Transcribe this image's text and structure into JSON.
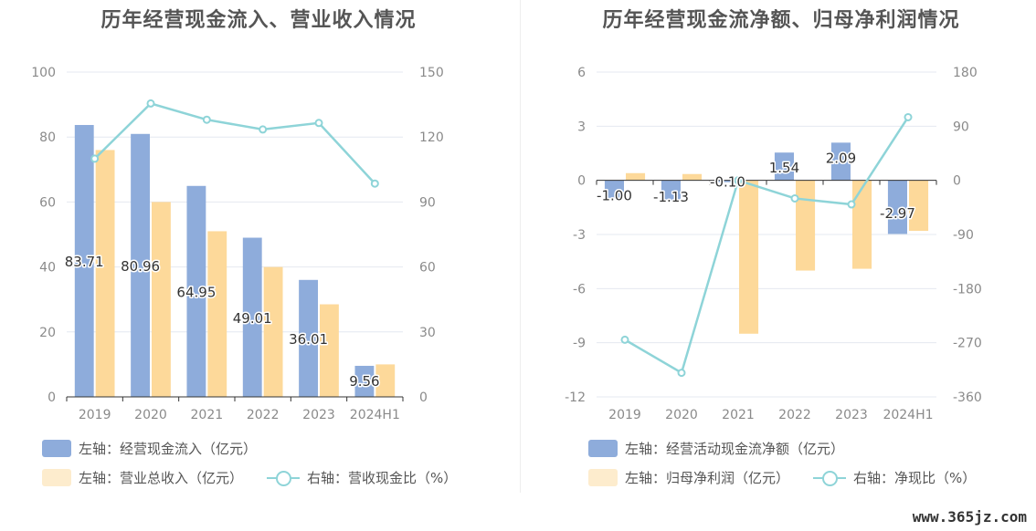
{
  "watermark": "www.365jz.com",
  "colors": {
    "bar_primary": "#8eacdb",
    "bar_secondary": "#fdd99a",
    "line": "#8ed4d8",
    "grid": "#e4e8f0",
    "axis": "#333333"
  },
  "chart_data": [
    {
      "type": "bar",
      "title": "历年经营现金流入、营业收入情况",
      "categories": [
        "2019",
        "2020",
        "2021",
        "2022",
        "2023",
        "2024H1"
      ],
      "left_axis": {
        "ylim": [
          0,
          100
        ],
        "ticks": [
          "0",
          "20",
          "40",
          "60",
          "80",
          "100"
        ]
      },
      "right_axis": {
        "ylim": [
          0,
          150
        ],
        "ticks": [
          "0",
          "30",
          "60",
          "90",
          "120",
          "150"
        ]
      },
      "series": [
        {
          "name": "左轴：经营现金流入（亿元）",
          "type": "bar",
          "axis": "left",
          "values": [
            83.71,
            80.96,
            64.95,
            49.01,
            36.01,
            9.56
          ],
          "labels": [
            "83.71",
            "80.96",
            "64.95",
            "49.01",
            "36.01",
            "9.56"
          ]
        },
        {
          "name": "左轴：营业总收入（亿元）",
          "type": "bar",
          "axis": "left",
          "values": [
            76,
            60,
            51,
            40,
            28.5,
            10
          ]
        },
        {
          "name": "右轴：营收现金比（%）",
          "type": "line",
          "axis": "right",
          "values": [
            110,
            135.5,
            128,
            123.5,
            126.5,
            98.5
          ]
        }
      ],
      "grid": true,
      "legend_position": "bottom-left"
    },
    {
      "type": "bar",
      "title": "历年经营现金流净额、归母净利润情况",
      "categories": [
        "2019",
        "2020",
        "2021",
        "2022",
        "2023",
        "2024H1"
      ],
      "left_axis": {
        "ylim": [
          -12,
          6
        ],
        "ticks": [
          "-12",
          "-9",
          "-6",
          "-3",
          "0",
          "3",
          "6"
        ]
      },
      "right_axis": {
        "ylim": [
          -360,
          180
        ],
        "ticks": [
          "-360",
          "-270",
          "-180",
          "-90",
          "0",
          "90",
          "180"
        ]
      },
      "series": [
        {
          "name": "左轴：经营活动现金流净额（亿元）",
          "type": "bar",
          "axis": "left",
          "values": [
            -1.0,
            -1.13,
            -0.1,
            1.54,
            2.09,
            -2.97
          ],
          "labels": [
            "-1.00",
            "-1.13",
            "-0.10",
            "1.54",
            "2.09",
            "-2.97"
          ]
        },
        {
          "name": "左轴：归母净利润（亿元）",
          "type": "bar",
          "axis": "left",
          "values": [
            0.4,
            0.35,
            -8.5,
            -5.0,
            -4.9,
            -2.8
          ]
        },
        {
          "name": "右轴：净现比（%）",
          "type": "line",
          "axis": "right",
          "values": [
            -265,
            -320,
            0,
            -30,
            -40,
            105
          ]
        }
      ],
      "grid": true,
      "legend_position": "bottom-left"
    }
  ]
}
